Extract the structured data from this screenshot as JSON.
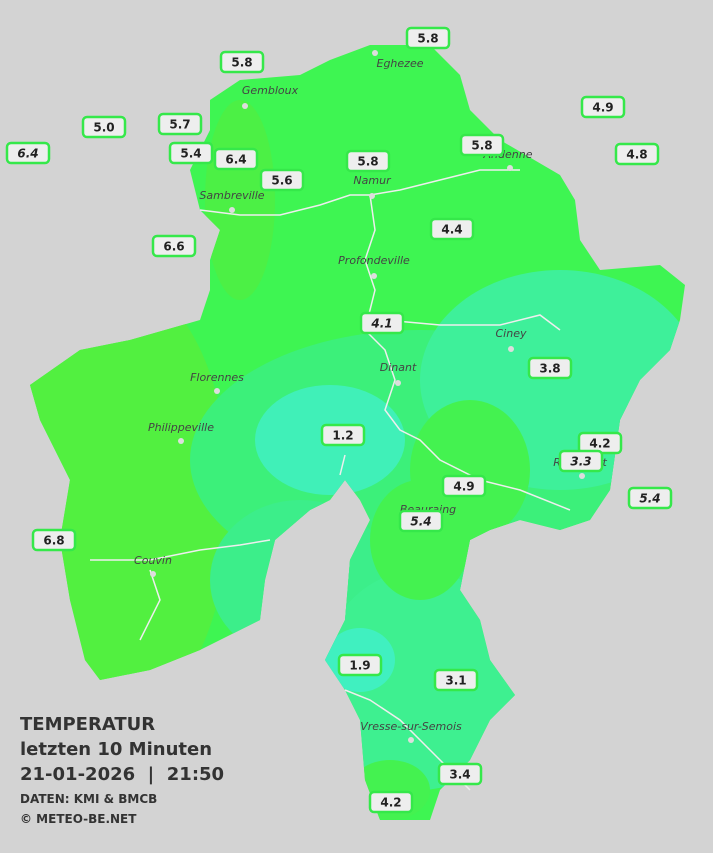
{
  "title": {
    "line1": "TEMPERATUR",
    "line2": "letzten 10 Minuten",
    "line3": "21-01-2026  |  21:50",
    "source": "DATEN: KMI & BMCB",
    "copyright": "© METEO-BE.NET"
  },
  "cities": [
    {
      "name": "Eghezee"
    },
    {
      "name": "Gembloux"
    },
    {
      "name": "Andenne"
    },
    {
      "name": "Namur"
    },
    {
      "name": "Sambreville"
    },
    {
      "name": "Profondeville"
    },
    {
      "name": "Ciney"
    },
    {
      "name": "Dinant"
    },
    {
      "name": "Florennes"
    },
    {
      "name": "Philippeville"
    },
    {
      "name": "Rochefort"
    },
    {
      "name": "Beauraing"
    },
    {
      "name": "Couvin"
    },
    {
      "name": "Vresse-sur-Semois"
    }
  ],
  "stations": [
    {
      "value": "5.8"
    },
    {
      "value": "5.8"
    },
    {
      "value": "4.9"
    },
    {
      "value": "5.0"
    },
    {
      "value": "5.7"
    },
    {
      "value": "6.4",
      "italic": true
    },
    {
      "value": "5.4"
    },
    {
      "value": "6.4"
    },
    {
      "value": "5.8"
    },
    {
      "value": "4.8"
    },
    {
      "value": "5.8"
    },
    {
      "value": "5.6"
    },
    {
      "value": "4.4"
    },
    {
      "value": "6.6"
    },
    {
      "value": "4.1",
      "italic": true
    },
    {
      "value": "3.8"
    },
    {
      "value": "1.2"
    },
    {
      "value": "4.2"
    },
    {
      "value": "3.3",
      "italic": true
    },
    {
      "value": "4.9"
    },
    {
      "value": "5.4",
      "italic": true
    },
    {
      "value": "5.4",
      "italic": true
    },
    {
      "value": "6.8"
    },
    {
      "value": "1.9"
    },
    {
      "value": "3.1"
    },
    {
      "value": "3.4"
    },
    {
      "value": "4.2"
    }
  ]
}
